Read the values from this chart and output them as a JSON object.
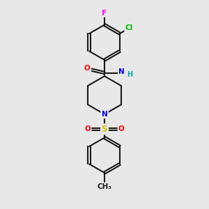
{
  "background_color": "#e8e8e8",
  "bond_color": "#1a1a1a",
  "atom_colors": {
    "N": "#0000ff",
    "O": "#ff0000",
    "S": "#cccc00",
    "F": "#ff00ff",
    "Cl": "#00bb00",
    "C": "#1a1a1a",
    "H": "#00aaaa"
  },
  "figsize": [
    3.0,
    3.0
  ],
  "dpi": 100
}
